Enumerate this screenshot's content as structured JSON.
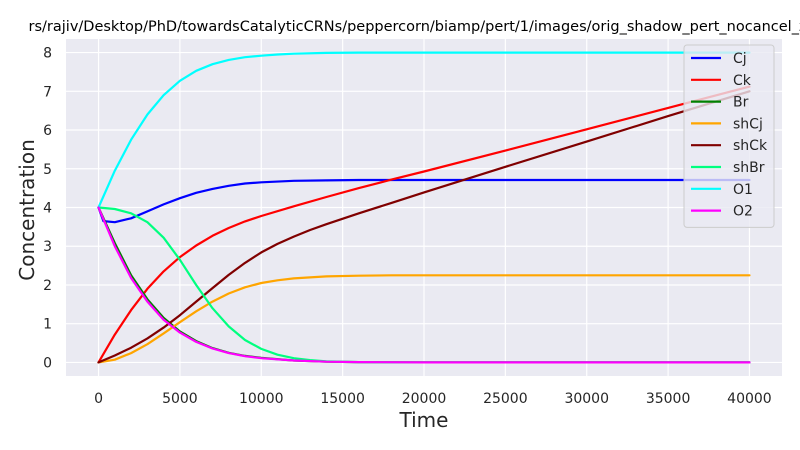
{
  "chart_data": {
    "type": "line",
    "title": "rs/rajiv/Desktop/PhD/towardsCatalyticCRNs/peppercorn/biamp/pert/1/images/orig_shadow_pert_nocancel_ze",
    "xlabel": "Time",
    "ylabel": "Concentration",
    "xlim": [
      -2000,
      42000
    ],
    "ylim": [
      -0.35,
      8.35
    ],
    "xticks": [
      0,
      5000,
      10000,
      15000,
      20000,
      25000,
      30000,
      35000,
      40000
    ],
    "yticks": [
      0,
      1,
      2,
      3,
      4,
      5,
      6,
      7,
      8
    ],
    "grid": true,
    "legend_position": "top-right",
    "series": [
      {
        "name": "Cj",
        "color": "#0000ff",
        "x": [
          0,
          300,
          1000,
          2000,
          3000,
          4000,
          5000,
          6000,
          7000,
          8000,
          9000,
          10000,
          12000,
          14000,
          16000,
          20000,
          25000,
          30000,
          35000,
          40000
        ],
        "y": [
          4.0,
          3.65,
          3.62,
          3.72,
          3.9,
          4.08,
          4.24,
          4.38,
          4.48,
          4.56,
          4.62,
          4.65,
          4.69,
          4.7,
          4.71,
          4.71,
          4.71,
          4.71,
          4.71,
          4.71
        ]
      },
      {
        "name": "Ck",
        "color": "#ff0000",
        "x": [
          0,
          1000,
          2000,
          3000,
          4000,
          5000,
          6000,
          7000,
          8000,
          9000,
          10000,
          12000,
          14000,
          16000,
          18000,
          20000,
          25000,
          30000,
          35000,
          40000
        ],
        "y": [
          0,
          0.72,
          1.35,
          1.9,
          2.35,
          2.72,
          3.02,
          3.27,
          3.47,
          3.64,
          3.78,
          4.03,
          4.27,
          4.5,
          4.72,
          4.93,
          5.47,
          6.02,
          6.57,
          7.12
        ]
      },
      {
        "name": "Br",
        "color": "#008000",
        "x": [
          0,
          1000,
          2000,
          3000,
          4000,
          5000,
          6000,
          7000,
          8000,
          9000,
          10000,
          12000,
          14000,
          16000,
          20000,
          25000,
          30000,
          35000,
          40000
        ],
        "y": [
          4.0,
          3.08,
          2.25,
          1.63,
          1.15,
          0.8,
          0.55,
          0.37,
          0.25,
          0.17,
          0.12,
          0.05,
          0.02,
          0.01,
          0,
          0,
          0,
          0,
          0
        ]
      },
      {
        "name": "shCj",
        "color": "#ffa500",
        "x": [
          0,
          1000,
          2000,
          3000,
          4000,
          5000,
          6000,
          7000,
          8000,
          9000,
          10000,
          11000,
          12000,
          14000,
          16000,
          18000,
          20000,
          25000,
          30000,
          35000,
          40000
        ],
        "y": [
          0,
          0.07,
          0.24,
          0.47,
          0.75,
          1.04,
          1.32,
          1.57,
          1.78,
          1.94,
          2.05,
          2.12,
          2.17,
          2.22,
          2.24,
          2.25,
          2.25,
          2.25,
          2.25,
          2.25,
          2.25
        ]
      },
      {
        "name": "shCk",
        "color": "#800000",
        "x": [
          0,
          1000,
          2000,
          3000,
          4000,
          5000,
          6000,
          7000,
          8000,
          9000,
          10000,
          11000,
          12000,
          13000,
          14000,
          16000,
          18000,
          20000,
          25000,
          30000,
          35000,
          40000
        ],
        "y": [
          0,
          0.18,
          0.38,
          0.62,
          0.9,
          1.22,
          1.57,
          1.92,
          2.26,
          2.57,
          2.84,
          3.06,
          3.25,
          3.42,
          3.57,
          3.85,
          4.12,
          4.39,
          5.05,
          5.7,
          6.36,
          7.0
        ]
      },
      {
        "name": "shBr",
        "color": "#00ff7f",
        "x": [
          0,
          1000,
          2000,
          3000,
          4000,
          5000,
          6000,
          7000,
          8000,
          9000,
          10000,
          11000,
          12000,
          13000,
          14000,
          16000,
          18000,
          20000,
          25000,
          30000,
          35000,
          40000
        ],
        "y": [
          4.0,
          3.96,
          3.85,
          3.62,
          3.22,
          2.65,
          2.0,
          1.4,
          0.93,
          0.58,
          0.35,
          0.2,
          0.11,
          0.06,
          0.03,
          0.01,
          0,
          0,
          0,
          0,
          0,
          0
        ]
      },
      {
        "name": "O1",
        "color": "#00ffff",
        "x": [
          0,
          1000,
          2000,
          3000,
          4000,
          5000,
          6000,
          7000,
          8000,
          9000,
          10000,
          11000,
          12000,
          14000,
          16000,
          20000,
          25000,
          30000,
          35000,
          40000
        ],
        "y": [
          4.0,
          4.95,
          5.75,
          6.4,
          6.9,
          7.27,
          7.53,
          7.7,
          7.81,
          7.88,
          7.92,
          7.95,
          7.97,
          7.99,
          8.0,
          8.0,
          8.0,
          8.0,
          8.0,
          8.0
        ]
      },
      {
        "name": "O2",
        "color": "#ff00ff",
        "x": [
          0,
          1000,
          2000,
          3000,
          4000,
          5000,
          6000,
          7000,
          8000,
          9000,
          10000,
          12000,
          14000,
          16000,
          20000,
          25000,
          30000,
          35000,
          40000
        ],
        "y": [
          4.0,
          3.0,
          2.18,
          1.57,
          1.1,
          0.77,
          0.53,
          0.36,
          0.24,
          0.16,
          0.11,
          0.05,
          0.02,
          0.01,
          0,
          0,
          0,
          0,
          0
        ]
      }
    ]
  }
}
